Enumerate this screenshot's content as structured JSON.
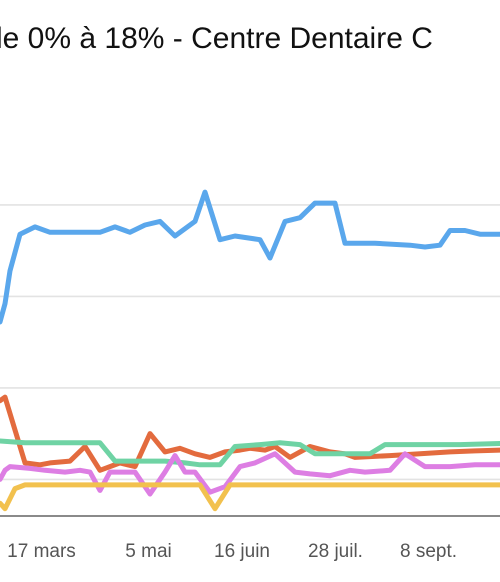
{
  "chart_data": {
    "type": "line",
    "title": "le 0% à 18% - Centre Dentaire C",
    "xlabel": "",
    "ylabel": "",
    "grid": true,
    "x_ticks": [
      {
        "label": "17 mars",
        "t": 0.083
      },
      {
        "label": "5 mai",
        "t": 0.297
      },
      {
        "label": "16 juin",
        "t": 0.484
      },
      {
        "label": "28 juil.",
        "t": 0.671
      },
      {
        "label": "8 sept.",
        "t": 0.857
      }
    ],
    "x_range": [
      0,
      1
    ],
    "y_range": [
      0,
      1
    ],
    "grid_y": [
      0.1,
      0.35,
      0.6,
      0.85
    ],
    "series": [
      {
        "color": "#5aa7ec",
        "points": [
          [
            0,
            0.53
          ],
          [
            0.01,
            0.58
          ],
          [
            0.02,
            0.67
          ],
          [
            0.04,
            0.77
          ],
          [
            0.07,
            0.79
          ],
          [
            0.1,
            0.775
          ],
          [
            0.18,
            0.775
          ],
          [
            0.2,
            0.775
          ],
          [
            0.23,
            0.79
          ],
          [
            0.26,
            0.775
          ],
          [
            0.29,
            0.795
          ],
          [
            0.32,
            0.805
          ],
          [
            0.35,
            0.765
          ],
          [
            0.39,
            0.805
          ],
          [
            0.41,
            0.885
          ],
          [
            0.44,
            0.755
          ],
          [
            0.47,
            0.765
          ],
          [
            0.52,
            0.755
          ],
          [
            0.54,
            0.705
          ],
          [
            0.57,
            0.805
          ],
          [
            0.6,
            0.815
          ],
          [
            0.63,
            0.855
          ],
          [
            0.67,
            0.855
          ],
          [
            0.69,
            0.745
          ],
          [
            0.75,
            0.745
          ],
          [
            0.82,
            0.74
          ],
          [
            0.85,
            0.735
          ],
          [
            0.88,
            0.74
          ],
          [
            0.9,
            0.78
          ],
          [
            0.93,
            0.78
          ],
          [
            0.96,
            0.77
          ],
          [
            1,
            0.77
          ]
        ]
      },
      {
        "color": "#e36b3e",
        "points": [
          [
            0,
            0.315
          ],
          [
            0.01,
            0.325
          ],
          [
            0.03,
            0.235
          ],
          [
            0.05,
            0.145
          ],
          [
            0.08,
            0.14
          ],
          [
            0.1,
            0.145
          ],
          [
            0.14,
            0.15
          ],
          [
            0.17,
            0.19
          ],
          [
            0.2,
            0.125
          ],
          [
            0.24,
            0.145
          ],
          [
            0.27,
            0.135
          ],
          [
            0.3,
            0.225
          ],
          [
            0.33,
            0.175
          ],
          [
            0.36,
            0.185
          ],
          [
            0.39,
            0.17
          ],
          [
            0.42,
            0.16
          ],
          [
            0.45,
            0.175
          ],
          [
            0.48,
            0.18
          ],
          [
            0.5,
            0.185
          ],
          [
            0.53,
            0.18
          ],
          [
            0.55,
            0.19
          ],
          [
            0.58,
            0.16
          ],
          [
            0.62,
            0.19
          ],
          [
            0.66,
            0.175
          ],
          [
            0.69,
            0.17
          ],
          [
            0.71,
            0.16
          ],
          [
            0.78,
            0.165
          ],
          [
            0.84,
            0.17
          ],
          [
            0.9,
            0.175
          ],
          [
            0.95,
            0.178
          ],
          [
            1,
            0.18
          ]
        ]
      },
      {
        "color": "#6fd3a4",
        "points": [
          [
            0,
            0.205
          ],
          [
            0.05,
            0.2
          ],
          [
            0.1,
            0.2
          ],
          [
            0.15,
            0.2
          ],
          [
            0.2,
            0.2
          ],
          [
            0.23,
            0.15
          ],
          [
            0.27,
            0.15
          ],
          [
            0.33,
            0.15
          ],
          [
            0.37,
            0.145
          ],
          [
            0.4,
            0.14
          ],
          [
            0.44,
            0.14
          ],
          [
            0.47,
            0.19
          ],
          [
            0.52,
            0.195
          ],
          [
            0.56,
            0.2
          ],
          [
            0.6,
            0.195
          ],
          [
            0.63,
            0.17
          ],
          [
            0.69,
            0.17
          ],
          [
            0.74,
            0.17
          ],
          [
            0.77,
            0.195
          ],
          [
            0.82,
            0.195
          ],
          [
            0.87,
            0.195
          ],
          [
            0.92,
            0.195
          ],
          [
            1,
            0.198
          ]
        ]
      },
      {
        "color": "#dd7ee3",
        "points": [
          [
            0,
            0.1
          ],
          [
            0.01,
            0.125
          ],
          [
            0.02,
            0.135
          ],
          [
            0.06,
            0.13
          ],
          [
            0.09,
            0.125
          ],
          [
            0.13,
            0.12
          ],
          [
            0.16,
            0.125
          ],
          [
            0.18,
            0.12
          ],
          [
            0.2,
            0.07
          ],
          [
            0.22,
            0.12
          ],
          [
            0.25,
            0.12
          ],
          [
            0.27,
            0.12
          ],
          [
            0.3,
            0.06
          ],
          [
            0.33,
            0.12
          ],
          [
            0.35,
            0.165
          ],
          [
            0.37,
            0.12
          ],
          [
            0.39,
            0.12
          ],
          [
            0.42,
            0.065
          ],
          [
            0.45,
            0.08
          ],
          [
            0.48,
            0.135
          ],
          [
            0.51,
            0.145
          ],
          [
            0.55,
            0.17
          ],
          [
            0.59,
            0.12
          ],
          [
            0.62,
            0.115
          ],
          [
            0.66,
            0.11
          ],
          [
            0.7,
            0.125
          ],
          [
            0.73,
            0.12
          ],
          [
            0.78,
            0.125
          ],
          [
            0.81,
            0.17
          ],
          [
            0.85,
            0.135
          ],
          [
            0.9,
            0.135
          ],
          [
            0.95,
            0.14
          ],
          [
            1,
            0.14
          ]
        ]
      },
      {
        "color": "#f2c14e",
        "points": [
          [
            0,
            0.035
          ],
          [
            0.01,
            0.02
          ],
          [
            0.03,
            0.075
          ],
          [
            0.05,
            0.085
          ],
          [
            0.1,
            0.085
          ],
          [
            0.15,
            0.085
          ],
          [
            0.2,
            0.085
          ],
          [
            0.25,
            0.085
          ],
          [
            0.3,
            0.085
          ],
          [
            0.35,
            0.085
          ],
          [
            0.4,
            0.085
          ],
          [
            0.43,
            0.02
          ],
          [
            0.46,
            0.085
          ],
          [
            0.52,
            0.085
          ],
          [
            0.58,
            0.085
          ],
          [
            0.64,
            0.085
          ],
          [
            0.7,
            0.085
          ],
          [
            0.76,
            0.085
          ],
          [
            0.82,
            0.085
          ],
          [
            0.88,
            0.085
          ],
          [
            0.94,
            0.085
          ],
          [
            1,
            0.085
          ]
        ]
      }
    ]
  }
}
